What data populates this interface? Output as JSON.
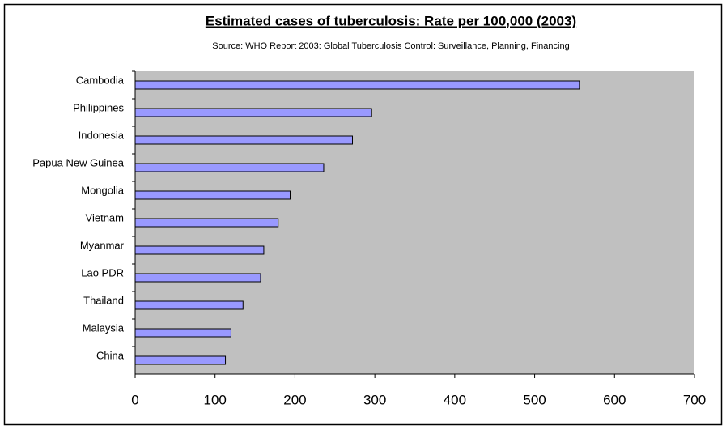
{
  "chart_data": {
    "type": "hbar",
    "title": "Estimated cases of tuberculosis:  Rate per 100,000 (2003)",
    "subtitle": "Source: WHO Report 2003: Global Tuberculosis Control: Surveillance, Planning, Financing",
    "categories": [
      "Cambodia",
      "Philippines",
      "Indonesia",
      "Papua New Guinea",
      "Mongolia",
      "Vietnam",
      "Myanmar",
      "Lao PDR",
      "Thailand",
      "Malaysia",
      "China"
    ],
    "values": [
      556,
      296,
      272,
      236,
      194,
      179,
      161,
      157,
      135,
      120,
      113
    ],
    "color": "#9999ff",
    "xlim": [
      0,
      700
    ],
    "xticks": [
      0,
      100,
      200,
      300,
      400,
      500,
      600,
      700
    ],
    "plot_background": "#c0c0c0",
    "grid": false
  }
}
